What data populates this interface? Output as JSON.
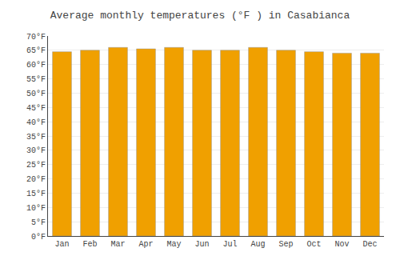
{
  "chart_data": {
    "type": "bar",
    "title": "Average monthly temperatures (°F ) in Casabianca",
    "categories": [
      "Jan",
      "Feb",
      "Mar",
      "Apr",
      "May",
      "Jun",
      "Jul",
      "Aug",
      "Sep",
      "Oct",
      "Nov",
      "Dec"
    ],
    "values": [
      64.5,
      65.0,
      66.0,
      65.5,
      66.0,
      65.0,
      65.0,
      66.0,
      65.0,
      64.5,
      64.0,
      64.0
    ],
    "color": "#F0A000",
    "ylim": [
      0,
      70
    ],
    "yticks": [
      {
        "value": 0,
        "label": "0°F"
      },
      {
        "value": 5,
        "label": "5°F"
      },
      {
        "value": 10,
        "label": "10°F"
      },
      {
        "value": 15,
        "label": "15°F"
      },
      {
        "value": 20,
        "label": "20°F"
      },
      {
        "value": 25,
        "label": "25°F"
      },
      {
        "value": 30,
        "label": "30°F"
      },
      {
        "value": 35,
        "label": "35°F"
      },
      {
        "value": 40,
        "label": "40°F"
      },
      {
        "value": 45,
        "label": "45°F"
      },
      {
        "value": 50,
        "label": "50°F"
      },
      {
        "value": 55,
        "label": "55°F"
      },
      {
        "value": 60,
        "label": "60°F"
      },
      {
        "value": 65,
        "label": "65°F"
      },
      {
        "value": 70,
        "label": "70°F"
      }
    ],
    "grid": true
  }
}
